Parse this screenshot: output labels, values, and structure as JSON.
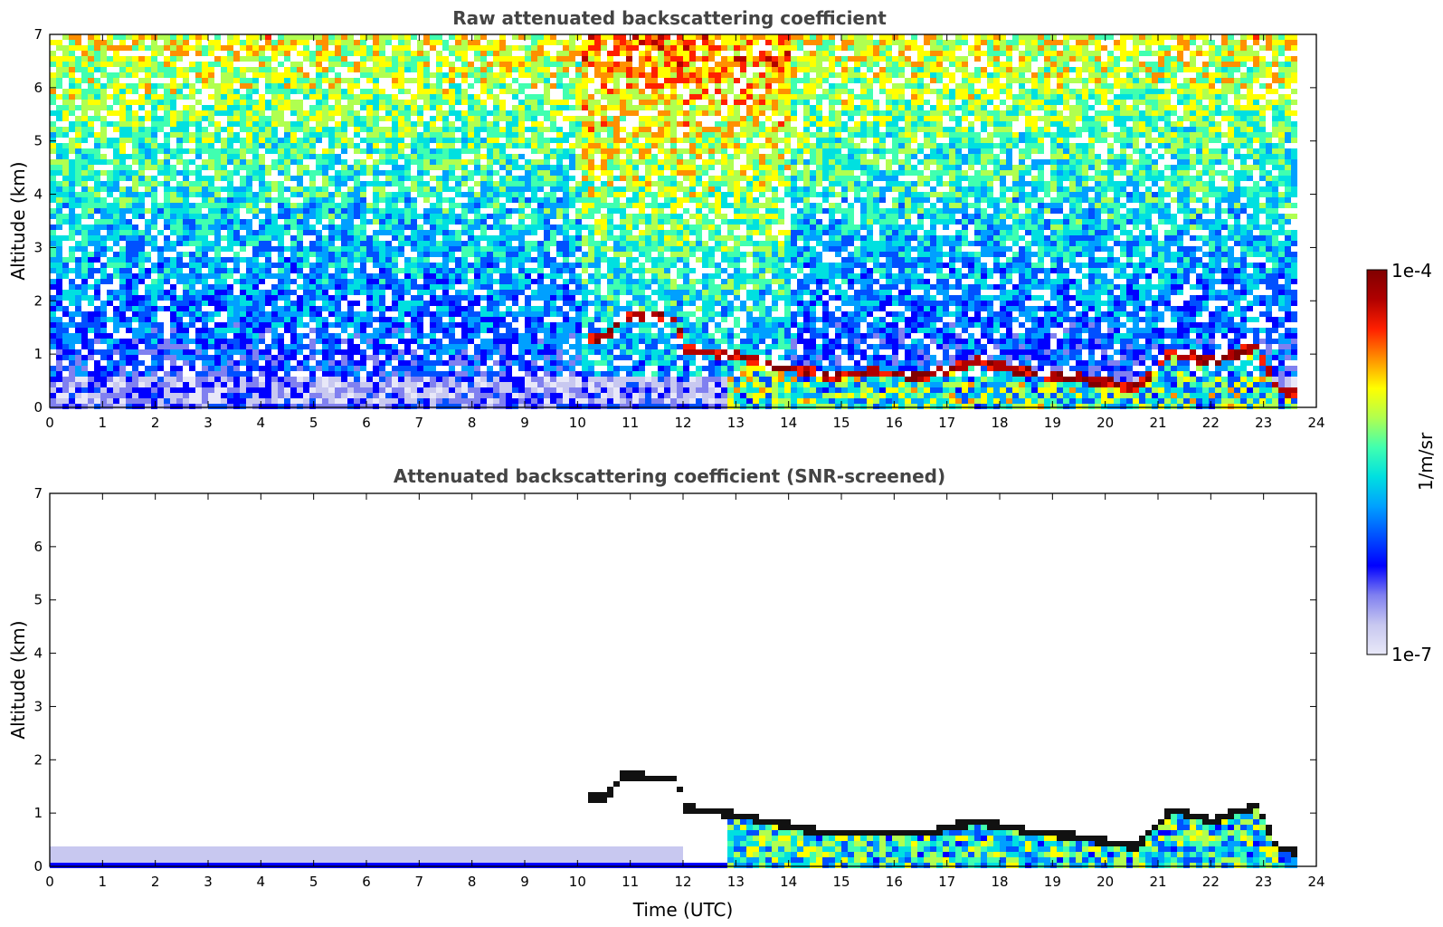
{
  "chart_data": [
    {
      "type": "heatmap",
      "title": "Raw attenuated backscattering coefficient",
      "xlabel": "",
      "ylabel": "Altitude (km)",
      "xlim": [
        0,
        24
      ],
      "ylim": [
        0,
        7
      ],
      "xticks": [
        "0",
        "1",
        "2",
        "3",
        "4",
        "5",
        "6",
        "7",
        "8",
        "9",
        "10",
        "11",
        "12",
        "13",
        "14",
        "15",
        "16",
        "17",
        "18",
        "19",
        "20",
        "21",
        "22",
        "23",
        "24"
      ],
      "yticks": [
        "0",
        "1",
        "2",
        "3",
        "4",
        "5",
        "6",
        "7"
      ],
      "data_end_hour": 23.6,
      "cloud_layer": {
        "description": "strong backscatter layer",
        "points": [
          [
            10.1,
            1.35
          ],
          [
            10.5,
            1.35
          ],
          [
            10.8,
            1.75
          ],
          [
            11.8,
            1.7
          ],
          [
            12.0,
            1.15
          ],
          [
            13.0,
            1.0
          ],
          [
            14.0,
            0.8
          ],
          [
            14.7,
            0.65
          ],
          [
            15.5,
            0.7
          ],
          [
            16.5,
            0.65
          ],
          [
            17.5,
            0.9
          ],
          [
            18.5,
            0.7
          ],
          [
            19.5,
            0.6
          ],
          [
            20.5,
            0.4
          ],
          [
            21.2,
            1.1
          ],
          [
            22.0,
            0.9
          ],
          [
            22.8,
            1.2
          ],
          [
            23.2,
            0.4
          ],
          [
            23.6,
            0.3
          ]
        ]
      }
    },
    {
      "type": "heatmap",
      "title": "Attenuated backscattering coefficient (SNR-screened)",
      "xlabel": "Time (UTC)",
      "ylabel": "Altitude (km)",
      "xlim": [
        0,
        24
      ],
      "ylim": [
        0,
        7
      ],
      "xticks": [
        "0",
        "1",
        "2",
        "3",
        "4",
        "5",
        "6",
        "7",
        "8",
        "9",
        "10",
        "11",
        "12",
        "13",
        "14",
        "15",
        "16",
        "17",
        "18",
        "19",
        "20",
        "21",
        "22",
        "23",
        "24"
      ],
      "yticks": [
        "0",
        "1",
        "2",
        "3",
        "4",
        "5",
        "6",
        "7"
      ],
      "data_end_hour": 23.6
    }
  ],
  "colorbar": {
    "label": "1/m/sr",
    "max_label": "1e-4",
    "min_label": "1e-7",
    "colors": [
      "#e8e8f8",
      "#c8c8f0",
      "#8080f0",
      "#0000ff",
      "#0050ff",
      "#00a0ff",
      "#00e0e0",
      "#40ffb0",
      "#b0ff50",
      "#ffff00",
      "#ff9000",
      "#ff2000",
      "#b00000",
      "#800000"
    ]
  }
}
